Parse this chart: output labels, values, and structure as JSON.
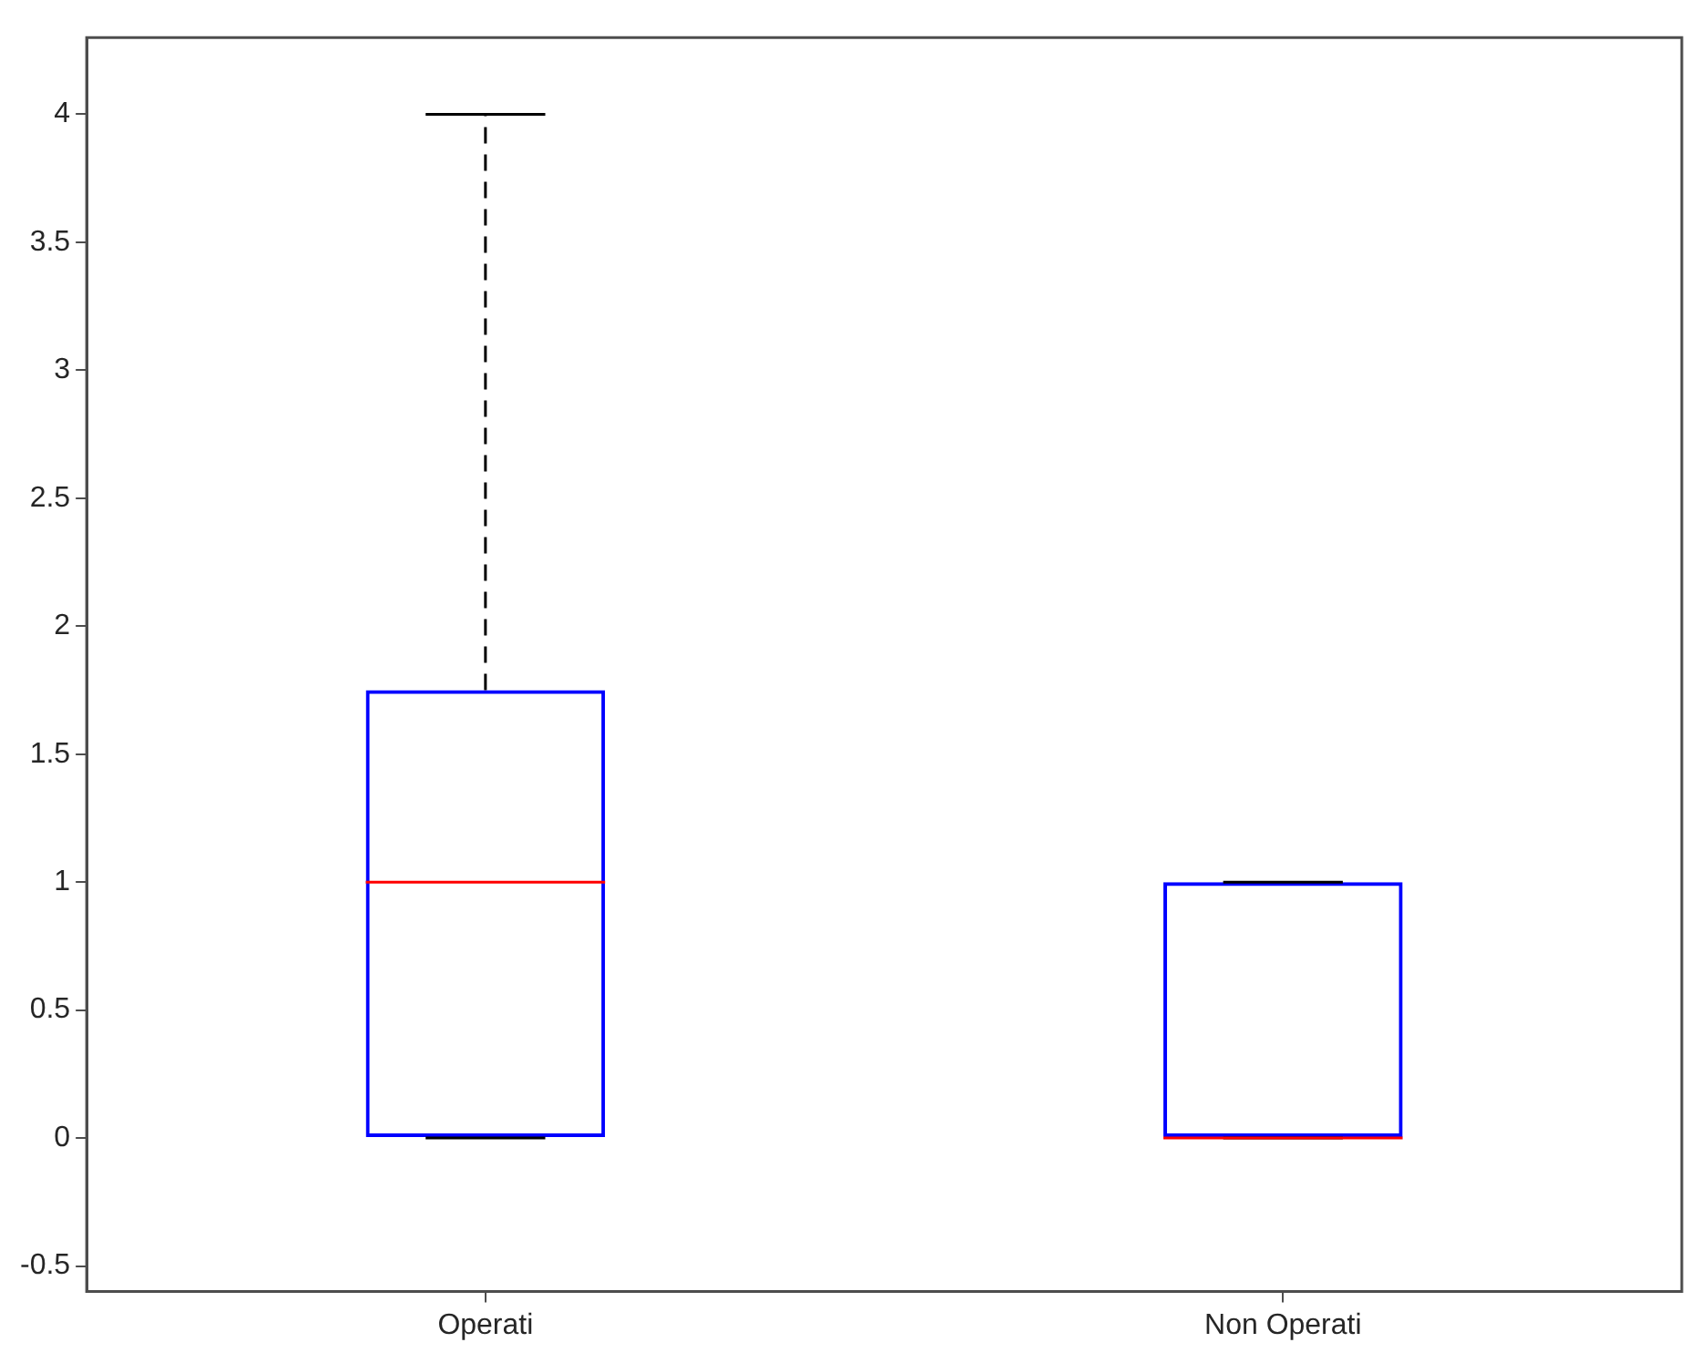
{
  "chart_data": {
    "type": "box",
    "categories": [
      "Operati",
      "Non Operati"
    ],
    "boxes": [
      {
        "low": 0,
        "q1": 0,
        "median": 1,
        "q3": 1.75,
        "high": 4
      },
      {
        "low": 0,
        "q1": 0,
        "median": 0,
        "q3": 1,
        "high": 1
      }
    ],
    "color": "#0000ff",
    "ylim": [
      -0.6,
      4.3
    ],
    "yticks": [
      -0.5,
      0,
      0.5,
      1,
      1.5,
      2,
      2.5,
      3,
      3.5,
      4
    ],
    "grid": false
  }
}
